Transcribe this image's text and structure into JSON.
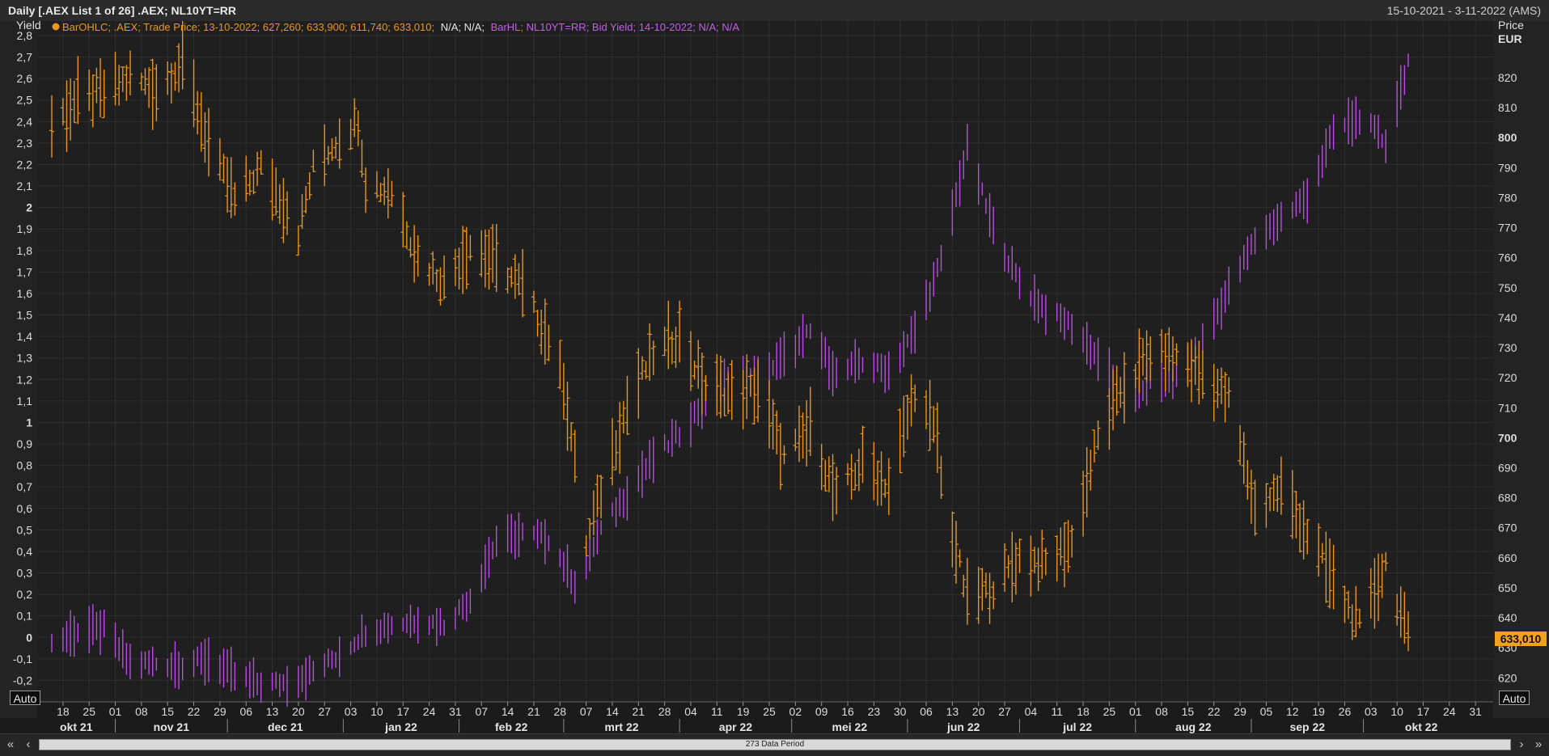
{
  "window": {
    "title": "Daily [.AEX List 1 of 26] .AEX; NL10YT=RR",
    "date_range": "15-10-2021 - 3-11-2022 (AMS)"
  },
  "legend": {
    "aex_text": "BarOHLC; .AEX; Trade Price; 13-10-2022; 627,260; 633,900; 611,740; 633,010;",
    "aex_na": "N/A; N/A;",
    "yield_text": "BarHL; NL10YT=RR; Bid Yield; 14-10-2022; N/A; N/A"
  },
  "axes": {
    "left_title": "Yield",
    "right_title": "Price",
    "right_unit": "EUR",
    "last_price_tag": "633,010",
    "auto_label": "Auto"
  },
  "bottom": {
    "data_period": "273 Data Period"
  },
  "colors": {
    "aex": "#e8961e",
    "yield": "#b84fe0",
    "background": "#1b1b1b",
    "grid": "#2f2f2f",
    "price_tag": "#f5a21b"
  },
  "chart_data": {
    "type": "bar",
    "x_range": [
      "2021-10-15",
      "2022-11-03"
    ],
    "left_axis": {
      "ylim": [
        -0.3,
        2.8
      ],
      "ticks": [
        "2,8",
        "2,7",
        "2,6",
        "2,5",
        "2,4",
        "2,3",
        "2,2",
        "2,1",
        "2",
        "1,9",
        "1,8",
        "1,7",
        "1,6",
        "1,5",
        "1,4",
        "1,3",
        "1,2",
        "1,1",
        "1",
        "0,9",
        "0,8",
        "0,7",
        "0,6",
        "0,5",
        "0,4",
        "0,3",
        "0,2",
        "0,1",
        "0",
        "-0,1",
        "-0,2"
      ]
    },
    "right_axis": {
      "ylim": [
        612,
        834
      ],
      "ticks": [
        "820",
        "810",
        "800",
        "790",
        "780",
        "770",
        "760",
        "750",
        "740",
        "730",
        "720",
        "710",
        "700",
        "690",
        "680",
        "670",
        "660",
        "650",
        "640",
        "630",
        "620"
      ]
    },
    "x_ticks": [
      "18",
      "25",
      "01",
      "08",
      "15",
      "22",
      "29",
      "06",
      "13",
      "20",
      "27",
      "03",
      "10",
      "17",
      "24",
      "31",
      "07",
      "14",
      "21",
      "28",
      "07",
      "14",
      "21",
      "28",
      "04",
      "11",
      "19",
      "25",
      "02",
      "09",
      "16",
      "23",
      "30",
      "06",
      "13",
      "20",
      "27",
      "04",
      "11",
      "18",
      "25",
      "01",
      "08",
      "15",
      "22",
      "29",
      "05",
      "12",
      "19",
      "26",
      "03",
      "10",
      "17",
      "24",
      "31"
    ],
    "months": [
      "okt 21",
      "nov 21",
      "dec 21",
      "jan 22",
      "feb 22",
      "mrt 22",
      "apr 22",
      "mei 22",
      "jun 22",
      "jul 22",
      "aug 22",
      "sep 22",
      "okt 22"
    ],
    "grid": true,
    "series": [
      {
        "name": ".AEX",
        "axis": "right",
        "style": "ohlc",
        "points": [
          [
            "2021-10-15",
            804
          ],
          [
            "2021-10-22",
            813
          ],
          [
            "2021-10-29",
            815
          ],
          [
            "2021-11-05",
            820
          ],
          [
            "2021-11-12",
            816
          ],
          [
            "2021-11-19",
            825
          ],
          [
            "2021-11-26",
            798
          ],
          [
            "2021-12-03",
            779
          ],
          [
            "2021-12-10",
            790
          ],
          [
            "2021-12-17",
            776
          ],
          [
            "2021-12-20",
            768
          ],
          [
            "2021-12-24",
            790
          ],
          [
            "2021-12-31",
            800
          ],
          [
            "2022-01-05",
            806
          ],
          [
            "2022-01-07",
            785
          ],
          [
            "2022-01-14",
            782
          ],
          [
            "2022-01-21",
            760
          ],
          [
            "2022-01-28",
            752
          ],
          [
            "2022-02-04",
            764
          ],
          [
            "2022-02-11",
            758
          ],
          [
            "2022-02-18",
            750
          ],
          [
            "2022-02-25",
            733
          ],
          [
            "2022-03-01",
            718
          ],
          [
            "2022-03-07",
            665
          ],
          [
            "2022-03-10",
            678
          ],
          [
            "2022-03-18",
            711
          ],
          [
            "2022-03-25",
            728
          ],
          [
            "2022-04-01",
            734
          ],
          [
            "2022-04-08",
            717
          ],
          [
            "2022-04-15",
            714
          ],
          [
            "2022-04-22",
            716
          ],
          [
            "2022-04-29",
            693
          ],
          [
            "2022-05-06",
            703
          ],
          [
            "2022-05-13",
            680
          ],
          [
            "2022-05-20",
            692
          ],
          [
            "2022-05-27",
            684
          ],
          [
            "2022-06-03",
            716
          ],
          [
            "2022-06-09",
            700
          ],
          [
            "2022-06-10",
            686
          ],
          [
            "2022-06-13",
            668
          ],
          [
            "2022-06-17",
            646
          ],
          [
            "2022-06-24",
            650
          ],
          [
            "2022-07-01",
            660
          ],
          [
            "2022-07-08",
            658
          ],
          [
            "2022-07-15",
            665
          ],
          [
            "2022-07-22",
            700
          ],
          [
            "2022-07-29",
            718
          ],
          [
            "2022-08-05",
            728
          ],
          [
            "2022-08-12",
            727
          ],
          [
            "2022-08-19",
            721
          ],
          [
            "2022-08-26",
            713
          ],
          [
            "2022-09-02",
            676
          ],
          [
            "2022-09-09",
            683
          ],
          [
            "2022-09-16",
            668
          ],
          [
            "2022-09-23",
            652
          ],
          [
            "2022-09-30",
            637
          ],
          [
            "2022-10-07",
            658
          ],
          [
            "2022-10-13",
            633
          ]
        ]
      },
      {
        "name": "NL10YT=RR",
        "axis": "left",
        "style": "hl",
        "points": [
          [
            "2021-10-15",
            -0.03
          ],
          [
            "2021-10-22",
            0.03
          ],
          [
            "2021-10-29",
            0.04
          ],
          [
            "2021-11-05",
            -0.12
          ],
          [
            "2021-11-12",
            -0.12
          ],
          [
            "2021-11-19",
            -0.13
          ],
          [
            "2021-11-26",
            -0.1
          ],
          [
            "2021-12-03",
            -0.18
          ],
          [
            "2021-12-10",
            -0.22
          ],
          [
            "2021-12-17",
            -0.21
          ],
          [
            "2021-12-24",
            -0.16
          ],
          [
            "2021-12-31",
            -0.08
          ],
          [
            "2022-01-07",
            0.03
          ],
          [
            "2022-01-14",
            0.06
          ],
          [
            "2022-01-21",
            0.08
          ],
          [
            "2022-01-28",
            0.06
          ],
          [
            "2022-02-04",
            0.18
          ],
          [
            "2022-02-11",
            0.45
          ],
          [
            "2022-02-18",
            0.48
          ],
          [
            "2022-02-25",
            0.46
          ],
          [
            "2022-03-04",
            0.25
          ],
          [
            "2022-03-11",
            0.5
          ],
          [
            "2022-03-18",
            0.67
          ],
          [
            "2022-03-25",
            0.83
          ],
          [
            "2022-04-01",
            0.95
          ],
          [
            "2022-04-08",
            1.1
          ],
          [
            "2022-04-15",
            1.22
          ],
          [
            "2022-04-22",
            1.2
          ],
          [
            "2022-04-29",
            1.3
          ],
          [
            "2022-05-06",
            1.42
          ],
          [
            "2022-05-13",
            1.22
          ],
          [
            "2022-05-20",
            1.28
          ],
          [
            "2022-05-27",
            1.24
          ],
          [
            "2022-06-03",
            1.42
          ],
          [
            "2022-06-10",
            1.75
          ],
          [
            "2022-06-17",
            2.28
          ],
          [
            "2022-06-24",
            1.9
          ],
          [
            "2022-07-01",
            1.65
          ],
          [
            "2022-07-08",
            1.52
          ],
          [
            "2022-07-15",
            1.45
          ],
          [
            "2022-07-22",
            1.3
          ],
          [
            "2022-07-29",
            1.12
          ],
          [
            "2022-08-05",
            1.18
          ],
          [
            "2022-08-12",
            1.2
          ],
          [
            "2022-08-19",
            1.38
          ],
          [
            "2022-08-26",
            1.62
          ],
          [
            "2022-09-02",
            1.85
          ],
          [
            "2022-09-09",
            1.95
          ],
          [
            "2022-09-16",
            2.05
          ],
          [
            "2022-09-23",
            2.35
          ],
          [
            "2022-09-30",
            2.42
          ],
          [
            "2022-10-07",
            2.3
          ],
          [
            "2022-10-13",
            2.68
          ]
        ]
      }
    ]
  }
}
